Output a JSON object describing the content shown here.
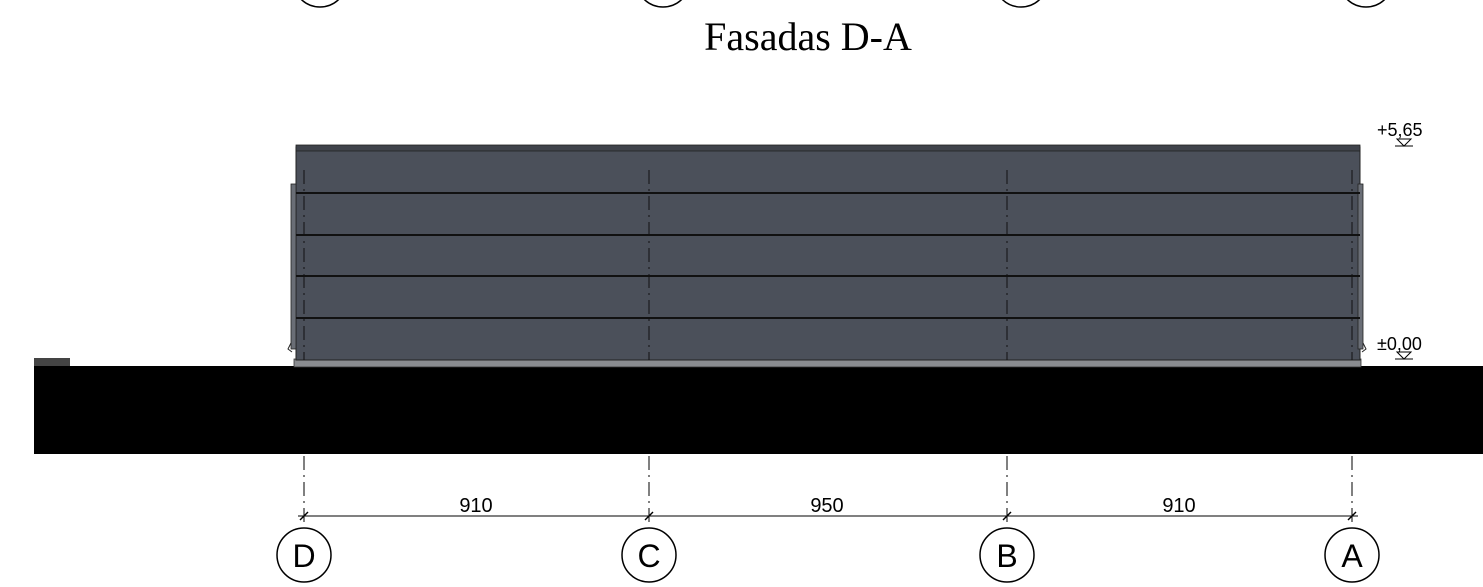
{
  "drawing": {
    "title": "Fasadas D-A",
    "levels": {
      "top": "+5,65",
      "ground": "±0,00"
    },
    "dimensions": [
      "910",
      "950",
      "910"
    ],
    "grid_axes": [
      "D",
      "C",
      "B",
      "A"
    ],
    "colors": {
      "facade": "#4b505a",
      "panel_line": "#111111",
      "ground": "#000000",
      "plinth": "#8a8c90",
      "background": "#ffffff"
    }
  }
}
